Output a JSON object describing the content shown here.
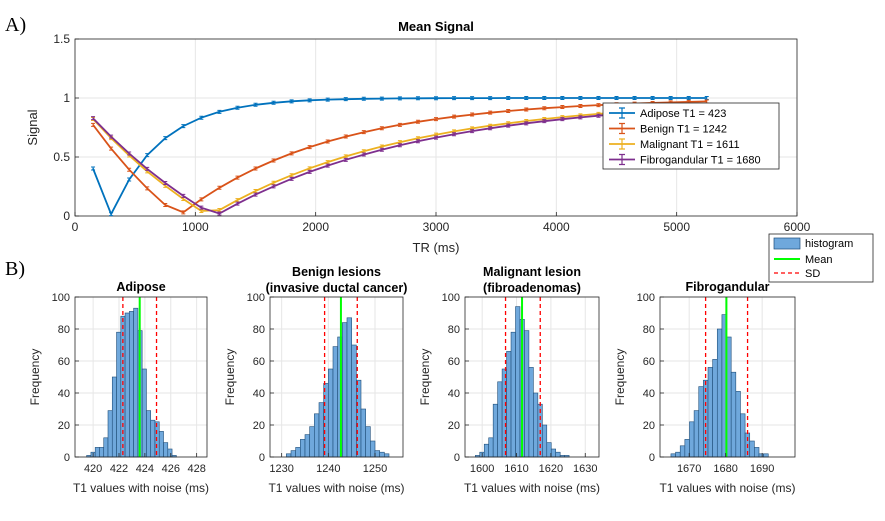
{
  "panel_labels": {
    "a": "A)",
    "b": "B)"
  },
  "colors": {
    "adipose": "#0072BD",
    "benign": "#D95319",
    "malignant": "#EDB120",
    "fibro": "#7E2F8E",
    "hist_fill": "#6FA8DC",
    "hist_edge": "#1F4E79",
    "mean": "#00FF00",
    "sd": "#FF0000",
    "grid": "#E6E6E6"
  },
  "chart_data": [
    {
      "id": "mean-signal",
      "type": "line",
      "title": "Mean Signal",
      "xlabel": "TR (ms)",
      "ylabel": "Signal",
      "xlim": [
        0,
        6000
      ],
      "ylim": [
        0,
        1.5
      ],
      "xticks": [
        0,
        1000,
        2000,
        3000,
        4000,
        5000,
        6000
      ],
      "yticks": [
        0,
        0.5,
        1,
        1.5
      ],
      "ytick_labels": [
        "0",
        "0.5",
        "1",
        "1.5"
      ],
      "legend_position": "right",
      "model": "|1 - 2*exp(-TR/T1)|",
      "tr_start": 150,
      "tr_step": 150,
      "tr_end": 5250,
      "series": [
        {
          "name": "Adipose T1 = 423",
          "t1": 423,
          "color_key": "adipose"
        },
        {
          "name": "Benign T1 = 1242",
          "t1": 1242,
          "color_key": "benign"
        },
        {
          "name": "Malignant T1 = 1611",
          "t1": 1611,
          "color_key": "malignant"
        },
        {
          "name": "Fibrogandular T1 = 1680",
          "t1": 1680,
          "color_key": "fibro"
        }
      ]
    },
    {
      "id": "hist-adipose",
      "type": "bar",
      "title": "Adipose",
      "xlabel": "T1 values with noise (ms)",
      "ylabel": "Frequency",
      "xlim": [
        418.6,
        428.8
      ],
      "ylim": [
        0,
        100
      ],
      "xticks": [
        420,
        422,
        424,
        426,
        428
      ],
      "yticks": [
        0,
        20,
        40,
        60,
        80,
        100
      ],
      "bin_start": 419.5,
      "bin_width": 0.33,
      "counts": [
        1,
        3,
        6,
        6,
        12,
        29,
        50,
        78,
        88,
        90,
        91,
        93,
        79,
        55,
        29,
        23,
        22,
        16,
        9,
        5,
        1
      ],
      "mean": 423.6,
      "sd_lines": [
        422.3,
        424.9
      ]
    },
    {
      "id": "hist-benign",
      "type": "bar",
      "title_lines": [
        "Benign lesions",
        "(invasive ductal cancer)"
      ],
      "xlabel": "T1 values with noise (ms)",
      "ylabel": "Frequency",
      "xlim": [
        1227.5,
        1256
      ],
      "ylim": [
        0,
        100
      ],
      "xticks": [
        1230,
        1240,
        1250
      ],
      "yticks": [
        0,
        20,
        40,
        60,
        80,
        100
      ],
      "bin_start": 1231,
      "bin_width": 1.0,
      "counts": [
        2,
        4,
        6,
        11,
        14,
        19,
        27,
        34,
        46,
        55,
        69,
        75,
        84,
        87,
        70,
        48,
        30,
        19,
        10,
        4,
        3,
        2
      ],
      "mean": 1242.7,
      "sd_lines": [
        1239.2,
        1246.2
      ]
    },
    {
      "id": "hist-malignant",
      "type": "bar",
      "title_lines": [
        "Malignant lesion",
        "(fibroadenomas)"
      ],
      "xlabel": "T1 values with noise (ms)",
      "ylabel": "Frequency",
      "xlim": [
        1595,
        1634
      ],
      "ylim": [
        0,
        100
      ],
      "xticks": [
        1600,
        1610,
        1620,
        1630
      ],
      "yticks": [
        0,
        20,
        40,
        60,
        80,
        100
      ],
      "bin_start": 1598,
      "bin_width": 1.3,
      "counts": [
        1,
        3,
        8,
        12,
        33,
        47,
        55,
        66,
        78,
        94,
        86,
        79,
        56,
        40,
        33,
        20,
        9,
        5,
        3,
        1,
        1
      ],
      "mean": 1611.6,
      "sd_lines": [
        1606.8,
        1616.9
      ]
    },
    {
      "id": "hist-fibro",
      "type": "bar",
      "title": "Fibrogandular",
      "xlabel": "T1 values with noise (ms)",
      "ylabel": "Frequency",
      "xlim": [
        1662,
        1699
      ],
      "ylim": [
        0,
        100
      ],
      "xticks": [
        1670,
        1680,
        1690
      ],
      "yticks": [
        0,
        20,
        40,
        60,
        80,
        100
      ],
      "bin_start": 1665,
      "bin_width": 1.27,
      "counts": [
        2,
        3,
        7,
        11,
        22,
        29,
        44,
        48,
        56,
        61,
        80,
        89,
        75,
        53,
        41,
        27,
        15,
        10,
        6,
        2,
        2
      ],
      "mean": 1680.2,
      "sd_lines": [
        1674.5,
        1686
      ]
    }
  ],
  "hist_legend": {
    "items": [
      "histogram",
      "Mean",
      "SD"
    ]
  }
}
